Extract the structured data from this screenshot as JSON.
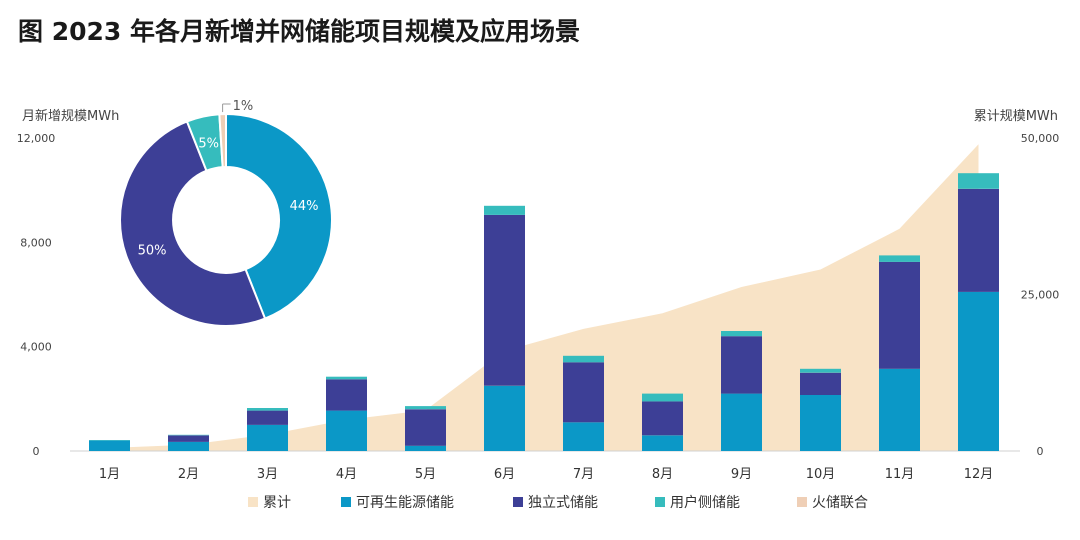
{
  "title": "图 2023 年各月新增并网储能项目规模及应用场景",
  "colors": {
    "cumulative": "#f8e3c6",
    "renewable": "#0b98c7",
    "standalone": "#3d3f96",
    "user_side": "#36bcbd",
    "thermal": "#efcfb6"
  },
  "chart_data": {
    "type": "bar",
    "stacked": true,
    "categories": [
      "1月",
      "2月",
      "3月",
      "4月",
      "5月",
      "6月",
      "7月",
      "8月",
      "9月",
      "10月",
      "11月",
      "12月"
    ],
    "ylabel_left": "月新增规模MWh",
    "ylabel_right": "累计规模MWh",
    "ylim_left": [
      0,
      12000
    ],
    "ylim_right": [
      0,
      50000
    ],
    "yticks_left": [
      "0",
      "4,000",
      "8,000",
      "12,000"
    ],
    "yticks_right": [
      "0",
      "25,000",
      "50,000"
    ],
    "series": [
      {
        "name": "可再生能源储能",
        "key": "renewable",
        "values": [
          400,
          350,
          1000,
          1550,
          200,
          2500,
          1100,
          600,
          2200,
          2150,
          3150,
          6100
        ]
      },
      {
        "name": "独立式储能",
        "key": "standalone",
        "values": [
          0,
          250,
          550,
          1200,
          1400,
          6550,
          2300,
          1300,
          2200,
          850,
          4100,
          3950
        ]
      },
      {
        "name": "用户侧储能",
        "key": "user_side",
        "values": [
          20,
          20,
          100,
          100,
          120,
          350,
          250,
          300,
          200,
          150,
          250,
          600
        ]
      },
      {
        "name": "火储联合",
        "key": "thermal",
        "values": [
          0,
          0,
          0,
          0,
          0,
          0,
          0,
          0,
          0,
          0,
          0,
          0
        ]
      }
    ],
    "cumulative": {
      "name": "累计",
      "type": "area",
      "values": [
        500,
        1000,
        2600,
        5000,
        6500,
        16000,
        19500,
        22000,
        26200,
        29000,
        35500,
        49000
      ]
    },
    "legend": [
      "累计",
      "可再生能源储能",
      "独立式储能",
      "用户侧储能",
      "火储联合"
    ],
    "legend_position": "bottom",
    "inset_pie": {
      "type": "pie",
      "labels": [
        "可再生能源储能",
        "独立式储能",
        "用户侧储能",
        "火储联合"
      ],
      "values": [
        44,
        50,
        5,
        1
      ],
      "value_labels": [
        "44%",
        "50%",
        "5%",
        "1%"
      ]
    }
  }
}
